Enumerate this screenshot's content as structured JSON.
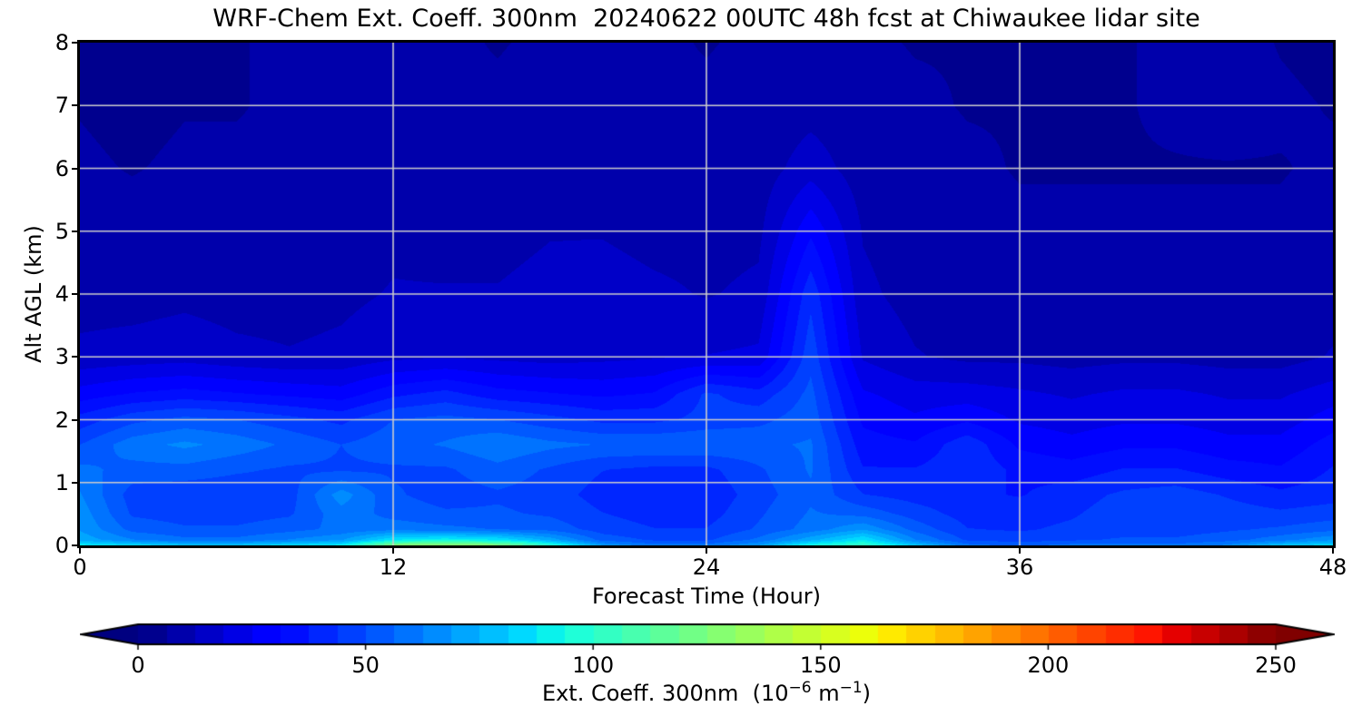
{
  "chart_data": {
    "type": "heatmap",
    "title": "WRF-Chem Ext. Coeff. 300nm  20240622 00UTC 48h fcst at Chiwaukee lidar site",
    "xlabel": "Forecast Time (Hour)",
    "ylabel": "Alt AGL (km)",
    "xlim": [
      0,
      48
    ],
    "ylim": [
      0,
      8
    ],
    "xticks": [
      0,
      12,
      24,
      36,
      48
    ],
    "yticks": [
      0,
      1,
      2,
      3,
      4,
      5,
      6,
      7,
      8
    ],
    "grid": true,
    "grid_color": "#cccccc",
    "colormap": "jet",
    "background_color": "#ffffff",
    "colorbar": {
      "ticks": [
        0,
        50,
        100,
        150,
        200,
        250
      ],
      "vmin": 0,
      "vmax": 250,
      "levels": 40,
      "extend": "both",
      "label_parts": {
        "p1": "Ext. Coeff. 300nm  (10",
        "s1": "−6",
        "p2": " m",
        "s2": "−1",
        "p3": ")"
      }
    },
    "x_hours": [
      0,
      2,
      4,
      6,
      8,
      10,
      12,
      14,
      16,
      18,
      20,
      22,
      24,
      26,
      28,
      30,
      32,
      34,
      36,
      38,
      40,
      42,
      44,
      46,
      48
    ],
    "y_alts_km": [
      0,
      0.08,
      0.25,
      0.5,
      0.8,
      1.2,
      1.6,
      2.0,
      2.4,
      3.0,
      4.0,
      5.0,
      6.0,
      7.0,
      8.0
    ],
    "values": [
      [
        88,
        83,
        78,
        78,
        83,
        88,
        125,
        130,
        125,
        98,
        68,
        58,
        58,
        68,
        93,
        103,
        78,
        58,
        54,
        58,
        58,
        58,
        63,
        78,
        83
      ],
      [
        73,
        63,
        58,
        58,
        63,
        68,
        88,
        92,
        88,
        73,
        54,
        49,
        49,
        58,
        73,
        88,
        63,
        49,
        47,
        49,
        51,
        51,
        54,
        60,
        68
      ],
      [
        68,
        54,
        51,
        51,
        54,
        58,
        60,
        58,
        56,
        54,
        47,
        44,
        44,
        51,
        59,
        68,
        54,
        44,
        43,
        45,
        47,
        47,
        49,
        51,
        54
      ],
      [
        66,
        49,
        47,
        47,
        49,
        60,
        54,
        51,
        51,
        49,
        44,
        41,
        41,
        49,
        57,
        54,
        47,
        41,
        41,
        43,
        47,
        49,
        47,
        45,
        47
      ],
      [
        63,
        47,
        45,
        45,
        47,
        66,
        51,
        47,
        49,
        47,
        41,
        39,
        39,
        47,
        55,
        44,
        41,
        39,
        37,
        41,
        45,
        47,
        43,
        39,
        41
      ],
      [
        58,
        54,
        54,
        51,
        49,
        49,
        49,
        49,
        54,
        49,
        44,
        42,
        42,
        49,
        57,
        38,
        38,
        42,
        36,
        34,
        38,
        38,
        34,
        32,
        38
      ],
      [
        50,
        60,
        64,
        60,
        55,
        50,
        54,
        57,
        62,
        58,
        56,
        56,
        56,
        55,
        57,
        34,
        32,
        42,
        30,
        27,
        30,
        30,
        27,
        27,
        34
      ],
      [
        40,
        48,
        52,
        50,
        46,
        42,
        50,
        52,
        50,
        46,
        42,
        42,
        46,
        48,
        54,
        30,
        26,
        30,
        24,
        22,
        24,
        24,
        22,
        22,
        28
      ],
      [
        28,
        32,
        34,
        32,
        30,
        28,
        36,
        40,
        34,
        32,
        30,
        32,
        45,
        40,
        52,
        26,
        22,
        22,
        20,
        18,
        20,
        20,
        18,
        18,
        22
      ],
      [
        14,
        15,
        16,
        14,
        13,
        14,
        17,
        18,
        17,
        16,
        17,
        18,
        19,
        20,
        48,
        18,
        13,
        11,
        11,
        10,
        11,
        11,
        10,
        10,
        13
      ],
      [
        10,
        10,
        11,
        10,
        10,
        11,
        13,
        13,
        13,
        15,
        16,
        14,
        12,
        14,
        42,
        14,
        10,
        9,
        9,
        8,
        9,
        9,
        8,
        8,
        10
      ],
      [
        8,
        8,
        9,
        8,
        8,
        9,
        11,
        10,
        10,
        12,
        12,
        10,
        10,
        11,
        30,
        12,
        9,
        8,
        7,
        7,
        7,
        7,
        7,
        7,
        8
      ],
      [
        7,
        6,
        7,
        7,
        7,
        9,
        10,
        8,
        8,
        9,
        9,
        8,
        8,
        9,
        16,
        9,
        8,
        7,
        6,
        6,
        6,
        6,
        6,
        6,
        7
      ],
      [
        6,
        5,
        6,
        6,
        7,
        8,
        8,
        7,
        7,
        8,
        8,
        7,
        7,
        8,
        10,
        8,
        7,
        6,
        6,
        5,
        6,
        7,
        8,
        7,
        6
      ],
      [
        6,
        5,
        5,
        6,
        7,
        8,
        8,
        7,
        6,
        7,
        8,
        7,
        6,
        7,
        8,
        7,
        6,
        6,
        6,
        5,
        6,
        7,
        8,
        6,
        5
      ]
    ]
  }
}
